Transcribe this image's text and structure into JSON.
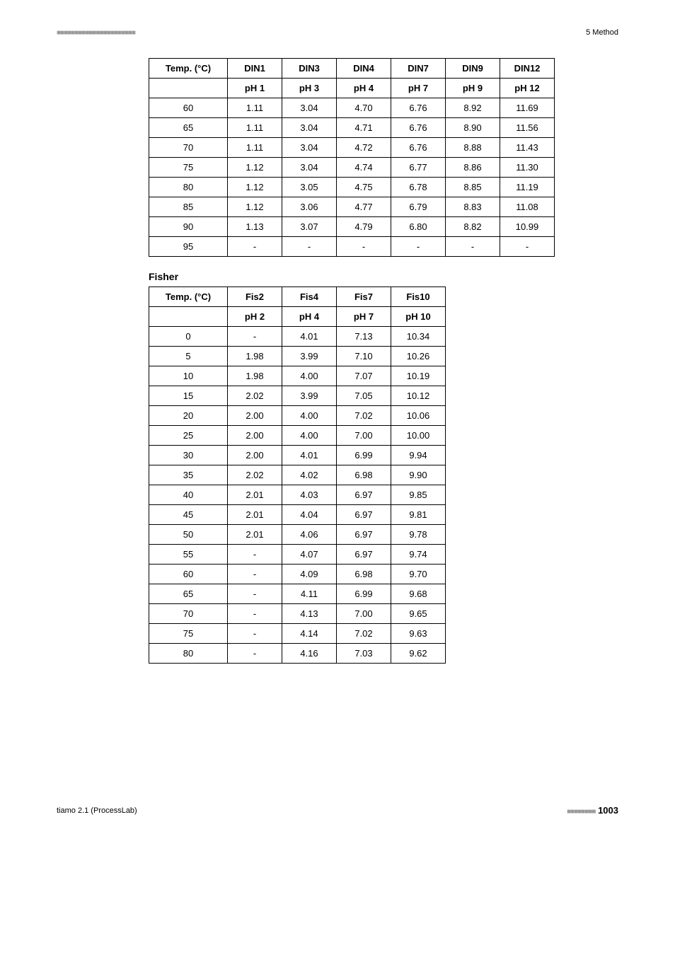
{
  "header": {
    "dashes": "■■■■■■■■■■■■■■■■■■■■■■",
    "label": "5 Method"
  },
  "table1": {
    "columns": [
      "Temp. (°C)",
      "DIN1",
      "DIN3",
      "DIN4",
      "DIN7",
      "DIN9",
      "DIN12"
    ],
    "subheaders": [
      "",
      "pH 1",
      "pH 3",
      "pH 4",
      "pH 7",
      "pH 9",
      "pH 12"
    ],
    "rows": [
      [
        "60",
        "1.11",
        "3.04",
        "4.70",
        "6.76",
        "8.92",
        "11.69"
      ],
      [
        "65",
        "1.11",
        "3.04",
        "4.71",
        "6.76",
        "8.90",
        "11.56"
      ],
      [
        "70",
        "1.11",
        "3.04",
        "4.72",
        "6.76",
        "8.88",
        "11.43"
      ],
      [
        "75",
        "1.12",
        "3.04",
        "4.74",
        "6.77",
        "8.86",
        "11.30"
      ],
      [
        "80",
        "1.12",
        "3.05",
        "4.75",
        "6.78",
        "8.85",
        "11.19"
      ],
      [
        "85",
        "1.12",
        "3.06",
        "4.77",
        "6.79",
        "8.83",
        "11.08"
      ],
      [
        "90",
        "1.13",
        "3.07",
        "4.79",
        "6.80",
        "8.82",
        "10.99"
      ],
      [
        "95",
        "-",
        "-",
        "-",
        "-",
        "-",
        "-"
      ]
    ]
  },
  "section2_title": "Fisher",
  "table2": {
    "columns": [
      "Temp. (°C)",
      "Fis2",
      "Fis4",
      "Fis7",
      "Fis10"
    ],
    "subheaders": [
      "",
      "pH 2",
      "pH 4",
      "pH 7",
      "pH 10"
    ],
    "rows": [
      [
        "0",
        "-",
        "4.01",
        "7.13",
        "10.34"
      ],
      [
        "5",
        "1.98",
        "3.99",
        "7.10",
        "10.26"
      ],
      [
        "10",
        "1.98",
        "4.00",
        "7.07",
        "10.19"
      ],
      [
        "15",
        "2.02",
        "3.99",
        "7.05",
        "10.12"
      ],
      [
        "20",
        "2.00",
        "4.00",
        "7.02",
        "10.06"
      ],
      [
        "25",
        "2.00",
        "4.00",
        "7.00",
        "10.00"
      ],
      [
        "30",
        "2.00",
        "4.01",
        "6.99",
        "9.94"
      ],
      [
        "35",
        "2.02",
        "4.02",
        "6.98",
        "9.90"
      ],
      [
        "40",
        "2.01",
        "4.03",
        "6.97",
        "9.85"
      ],
      [
        "45",
        "2.01",
        "4.04",
        "6.97",
        "9.81"
      ],
      [
        "50",
        "2.01",
        "4.06",
        "6.97",
        "9.78"
      ],
      [
        "55",
        "-",
        "4.07",
        "6.97",
        "9.74"
      ],
      [
        "60",
        "-",
        "4.09",
        "6.98",
        "9.70"
      ],
      [
        "65",
        "-",
        "4.11",
        "6.99",
        "9.68"
      ],
      [
        "70",
        "-",
        "4.13",
        "7.00",
        "9.65"
      ],
      [
        "75",
        "-",
        "4.14",
        "7.02",
        "9.63"
      ],
      [
        "80",
        "-",
        "4.16",
        "7.03",
        "9.62"
      ]
    ]
  },
  "footer": {
    "left": "tiamo 2.1 (ProcessLab)",
    "dashes": "■■■■■■■■",
    "page": "1003"
  }
}
